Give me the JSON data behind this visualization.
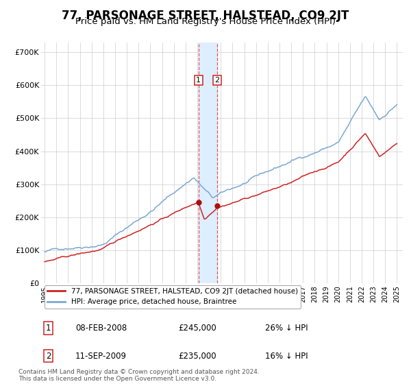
{
  "title": "77, PARSONAGE STREET, HALSTEAD, CO9 2JT",
  "subtitle": "Price paid vs. HM Land Registry's House Price Index (HPI)",
  "ylim": [
    0,
    730000
  ],
  "yticks": [
    0,
    100000,
    200000,
    300000,
    400000,
    500000,
    600000,
    700000
  ],
  "ytick_labels": [
    "£0",
    "£100K",
    "£200K",
    "£300K",
    "£400K",
    "£500K",
    "£600K",
    "£700K"
  ],
  "hpi_color": "#7aa8d2",
  "price_color": "#cc2222",
  "marker_color": "#aa1111",
  "vspan_color": "#ddeeff",
  "vline_color": "#dd5555",
  "label_box_color": "#cc2222",
  "title_fontsize": 12,
  "subtitle_fontsize": 9.5,
  "legend_label_red": "77, PARSONAGE STREET, HALSTEAD, CO9 2JT (detached house)",
  "legend_label_blue": "HPI: Average price, detached house, Braintree",
  "transaction1_label": "1",
  "transaction1_date": "08-FEB-2008",
  "transaction1_price": "£245,000",
  "transaction1_hpi": "26% ↓ HPI",
  "transaction2_label": "2",
  "transaction2_date": "11-SEP-2009",
  "transaction2_price": "£235,000",
  "transaction2_hpi": "16% ↓ HPI",
  "footnote": "Contains HM Land Registry data © Crown copyright and database right 2024.\nThis data is licensed under the Open Government Licence v3.0.",
  "t1_x": 2008.1,
  "t2_x": 2009.7,
  "t1_y": 245000,
  "t2_y": 235000,
  "background_color": "#ffffff",
  "grid_color": "#cccccc",
  "xlim_left": 1994.7,
  "xlim_right": 2025.5
}
